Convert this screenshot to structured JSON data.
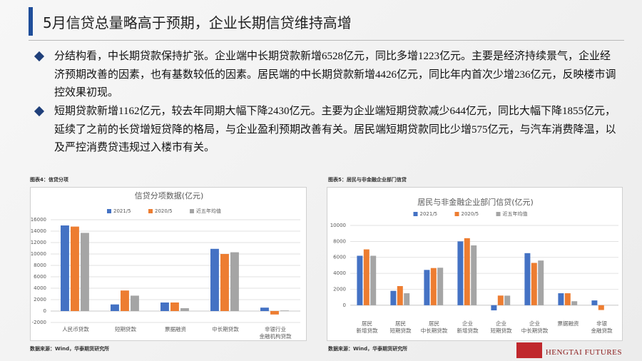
{
  "title": "5月信贷总量略高于预期，企业长期信贷维持高增",
  "bullets": [
    "分结构看，中长期贷款保持扩张。企业端中长期贷款新增6528亿元，同比多增1223亿元。主要是经济持续景气，企业经济预期改善的因素，也有基数较低的因素。居民端的中长期贷款新增4426亿元，同比年内首次少增236亿元，反映楼市调控效果初现。",
    "短期贷款新增1162亿元，较去年同期大幅下降2430亿元。主要为企业端短期贷款减少644亿元，同比大幅下降1855亿元，延续了之前的长贷增短贷降的格局，与企业盈利预期改善有关。居民端短期贷款同比少增575亿元，与汽车消费降温，以及严控消费贷违规过入楼市有关。"
  ],
  "panels": [
    {
      "caption": "图表4：信贷分项",
      "source": "数据来源：Wind，华泰期货研究所"
    },
    {
      "caption": "图表5：居民与非金融企业部门信贷",
      "source": "数据来源：Wind，华泰期货研究所"
    }
  ],
  "logo": "HENGTAI FUTURES",
  "chart_data": [
    {
      "type": "bar",
      "title": "信贷分项数据(亿元)",
      "categories": [
        "人民币贷款",
        "短期贷款",
        "票据融资",
        "中长期贷款",
        "非银行业\n金融机构贷款"
      ],
      "series": [
        {
          "name": "2021/5",
          "color": "#4472c4",
          "values": [
            15000,
            1162,
            1500,
            10900,
            600
          ]
        },
        {
          "name": "2020/5",
          "color": "#ed7d31",
          "values": [
            14800,
            3600,
            1500,
            10000,
            -600
          ]
        },
        {
          "name": "近五年均值",
          "color": "#a5a5a5",
          "values": [
            13700,
            2700,
            500,
            10300,
            100
          ]
        }
      ],
      "ylim": [
        -2000,
        16000
      ],
      "yticks": [
        -2000,
        0,
        2000,
        4000,
        6000,
        8000,
        10000,
        12000,
        14000,
        16000
      ],
      "grid": true
    },
    {
      "type": "bar",
      "title": "居民与非金融企业部门信贷(亿元)",
      "categories": [
        "居民\n新增贷款",
        "居民\n短期贷款",
        "居民\n中长期贷款",
        "企业\n新增贷款",
        "企业\n短期贷款",
        "企业\n中长期贷款",
        "票据融资",
        "非银\n金融贷款"
      ],
      "series": [
        {
          "name": "2021/5",
          "color": "#4472c4",
          "values": [
            6200,
            1800,
            4426,
            8000,
            -644,
            6528,
            1500,
            600
          ]
        },
        {
          "name": "2020/5",
          "color": "#ed7d31",
          "values": [
            7000,
            2400,
            4662,
            8400,
            1211,
            5305,
            1500,
            -600
          ]
        },
        {
          "name": "近五年均值",
          "color": "#a5a5a5",
          "values": [
            6200,
            1500,
            4700,
            7500,
            1200,
            5600,
            500,
            0
          ]
        }
      ],
      "ylim": [
        -1000,
        10000
      ],
      "yticks": [
        0,
        2000,
        4000,
        6000,
        8000,
        10000
      ],
      "grid": true
    }
  ]
}
